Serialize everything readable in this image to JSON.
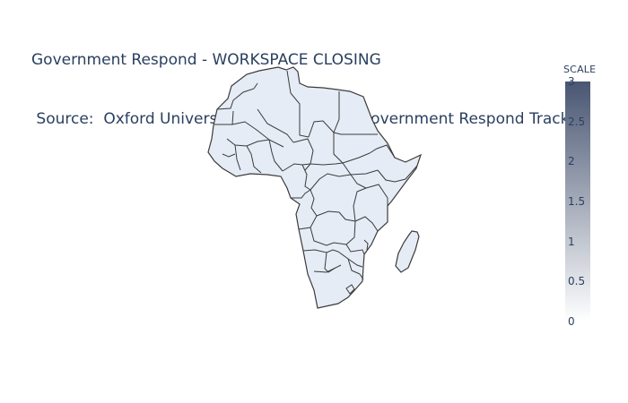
{
  "chart_data": {
    "type": "choropleth",
    "title": "Government Respond - WORKSPACE CLOSING",
    "subtitle": " Source:  Oxford University CORONAVIRUS Government Respond Tracker",
    "scope": "africa",
    "colorbar": {
      "title": "SCALE",
      "range": [
        0,
        3
      ],
      "tick_labels": [
        "0",
        "0.5",
        "1",
        "1.5",
        "2",
        "2.5",
        "3"
      ],
      "color_low": "#ffffff",
      "color_high": "#495672"
    }
  },
  "colors": {
    "land": "#e5ecf6",
    "border": "#3b3b3b",
    "text": "#2a3f5f"
  }
}
